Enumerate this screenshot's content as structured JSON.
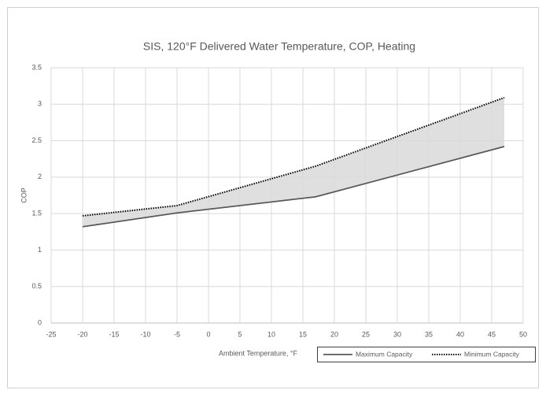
{
  "chart_data": {
    "type": "line",
    "title": "SIS, 120°F Delivered Water Temperature, COP, Heating",
    "xlabel": "Ambient Temperature, °F",
    "ylabel": "COP",
    "x": [
      -20,
      -5,
      17,
      47
    ],
    "series": [
      {
        "name": "Maximum Capacity",
        "color": "#595959",
        "style": "solid",
        "values": [
          1.32,
          1.51,
          1.73,
          2.42
        ]
      },
      {
        "name": "Minimum Capacity",
        "color": "#000000",
        "style": "dotted",
        "values": [
          1.47,
          1.61,
          2.15,
          3.09
        ]
      }
    ],
    "fill_between_color": "#d9d9d9",
    "xlim": [
      -25,
      50
    ],
    "xticks": [
      -25,
      -20,
      -15,
      -10,
      -5,
      0,
      5,
      10,
      15,
      20,
      25,
      30,
      35,
      40,
      45,
      50
    ],
    "ylim": [
      0,
      3.5
    ],
    "yticks": [
      0,
      0.5,
      1,
      1.5,
      2,
      2.5,
      3,
      3.5
    ],
    "grid": true,
    "legend": "bottom right"
  }
}
